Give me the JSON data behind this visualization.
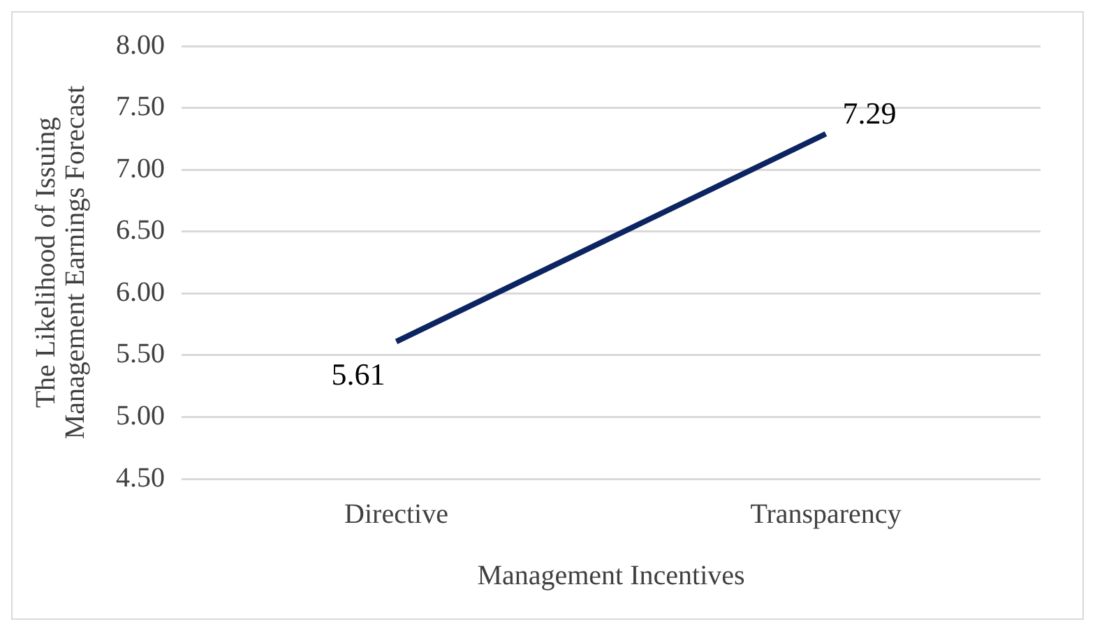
{
  "chart_data": {
    "type": "line",
    "xlabel": "Management Incentives",
    "ylabel": "The Likelihood of Issuing\nManagement Earnings Forecast",
    "categories": [
      "Directive",
      "Transparency"
    ],
    "series": [
      {
        "color": "#0c2461",
        "values": [
          5.61,
          7.29
        ]
      }
    ],
    "ylim": [
      4.5,
      8
    ],
    "yticks": [
      {
        "value": 4.5,
        "label": "4.50"
      },
      {
        "value": 5,
        "label": "5.00"
      },
      {
        "value": 5.5,
        "label": "5.50"
      },
      {
        "value": 6,
        "label": "6.00"
      },
      {
        "value": 6.5,
        "label": "6.50"
      },
      {
        "value": 7,
        "label": "7.00"
      },
      {
        "value": 7.5,
        "label": "7.50"
      },
      {
        "value": 8,
        "label": "8.00"
      }
    ],
    "grid": "y",
    "legend": false,
    "marker": "none",
    "line_style": "solid",
    "data_labels": true
  }
}
